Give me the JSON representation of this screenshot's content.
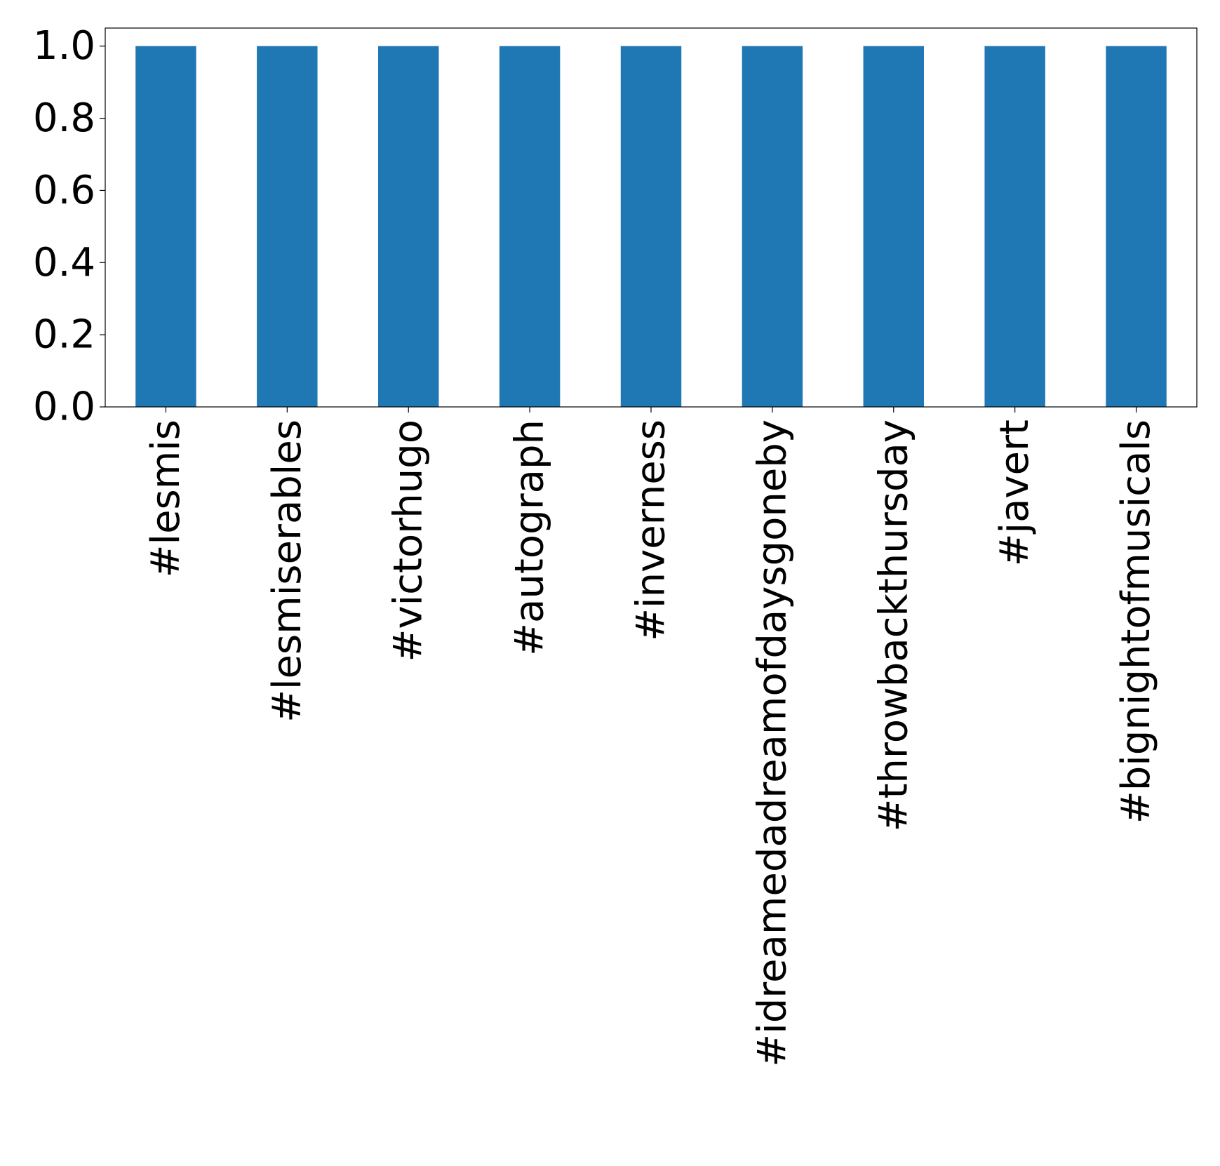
{
  "chart_data": {
    "type": "bar",
    "title": "",
    "xlabel": "",
    "ylabel": "",
    "categories": [
      "#lesmis",
      "#lesmiserables",
      "#victorhugo",
      "#autograph",
      "#inverness",
      "#idreamedadreamofdaysgoneby",
      "#throwbackthursday",
      "#javert",
      "#bignightofmusicals"
    ],
    "values": [
      1.0,
      1.0,
      1.0,
      1.0,
      1.0,
      1.0,
      1.0,
      1.0,
      1.0
    ],
    "ylim": [
      0,
      1.05
    ],
    "yticks": [
      "0.0",
      "0.2",
      "0.4",
      "0.6",
      "0.8",
      "1.0"
    ],
    "grid": false,
    "legend": "none",
    "bar_color": "#1f77b4"
  }
}
